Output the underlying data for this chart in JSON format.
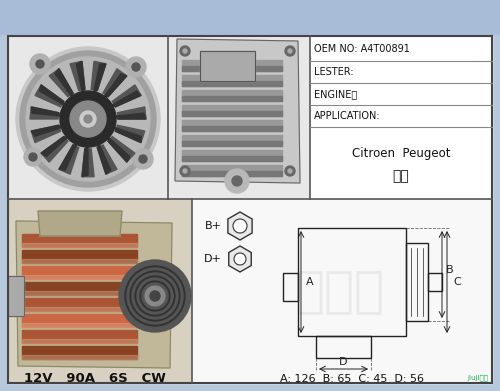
{
  "bg_color": "#b8c8dc",
  "top_bar_color": "#a8bcd8",
  "border_color": "#444444",
  "grid_line_color": "#555555",
  "white_bg": "#ffffff",
  "oem_no": "OEM NO: A4T00891",
  "lester": "LESTER:",
  "engine": "ENGINE：",
  "application": "APPLICATION:",
  "brand1": "Citroen  Peugeot",
  "brand2": "标致",
  "specs_bottom": "12V   90A   6S   CW",
  "dims_text": "A: 126  B: 65  C: 45  D: 56",
  "terminal_b": "B+",
  "terminal_d": "D+",
  "watermark_color": "#cccccc",
  "text_color": "#111111",
  "table_line_color": "#888888",
  "schematic_color": "#222222",
  "footer_text": "jiuji机电",
  "footer_color": "#00aa44"
}
